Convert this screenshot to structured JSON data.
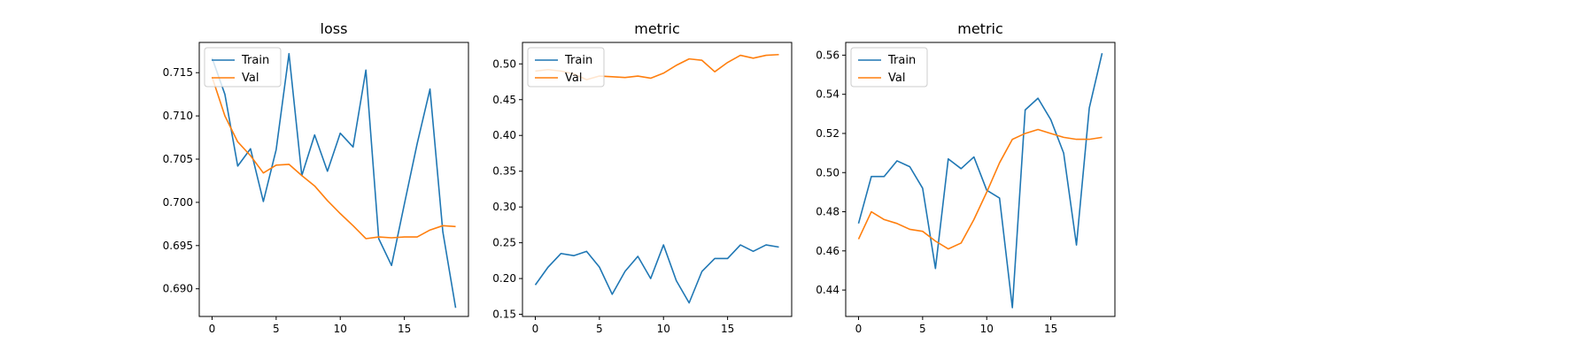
{
  "chart_data": [
    {
      "type": "line",
      "title": "loss",
      "xlabel": "",
      "ylabel": "",
      "xlim": [
        -1,
        20
      ],
      "ylim": [
        0.6868,
        0.7185
      ],
      "xticks": [
        0,
        5,
        10,
        15
      ],
      "yticks": [
        0.69,
        0.695,
        0.7,
        0.705,
        0.71,
        0.715
      ],
      "ytick_labels": [
        "0.690",
        "0.695",
        "0.700",
        "0.705",
        "0.710",
        "0.715"
      ],
      "legend": {
        "position": "upper-left",
        "entries": [
          "Train",
          "Val"
        ]
      },
      "x": [
        0,
        1,
        2,
        3,
        4,
        5,
        6,
        7,
        8,
        9,
        10,
        11,
        12,
        13,
        14,
        15,
        16,
        17,
        18,
        19
      ],
      "series": [
        {
          "name": "Train",
          "color": "#1f77b4",
          "values": [
            0.7167,
            0.7125,
            0.7042,
            0.7062,
            0.7001,
            0.7061,
            0.7172,
            0.7031,
            0.7078,
            0.7036,
            0.708,
            0.7064,
            0.7153,
            0.6958,
            0.6927,
            0.6998,
            0.7068,
            0.7131,
            0.6966,
            0.6878
          ]
        },
        {
          "name": "Val",
          "color": "#ff7f0e",
          "values": [
            0.7145,
            0.71,
            0.707,
            0.7054,
            0.7034,
            0.7043,
            0.7044,
            0.7031,
            0.7019,
            0.7002,
            0.6987,
            0.6973,
            0.6958,
            0.696,
            0.6959,
            0.696,
            0.696,
            0.6968,
            0.6973,
            0.6972
          ]
        }
      ]
    },
    {
      "type": "line",
      "title": "metric",
      "xlabel": "",
      "ylabel": "",
      "xlim": [
        -1,
        20
      ],
      "ylim": [
        0.147,
        0.53
      ],
      "xticks": [
        0,
        5,
        10,
        15
      ],
      "yticks": [
        0.15,
        0.2,
        0.25,
        0.3,
        0.35,
        0.4,
        0.45,
        0.5
      ],
      "ytick_labels": [
        "0.15",
        "0.20",
        "0.25",
        "0.30",
        "0.35",
        "0.40",
        "0.45",
        "0.50"
      ],
      "legend": {
        "position": "upper-left",
        "entries": [
          "Train",
          "Val"
        ]
      },
      "x": [
        0,
        1,
        2,
        3,
        4,
        5,
        6,
        7,
        8,
        9,
        10,
        11,
        12,
        13,
        14,
        15,
        16,
        17,
        18,
        19
      ],
      "series": [
        {
          "name": "Train",
          "color": "#1f77b4",
          "values": [
            0.191,
            0.216,
            0.235,
            0.232,
            0.238,
            0.216,
            0.178,
            0.21,
            0.231,
            0.2,
            0.247,
            0.197,
            0.166,
            0.21,
            0.228,
            0.228,
            0.247,
            0.238,
            0.247,
            0.244
          ]
        },
        {
          "name": "Val",
          "color": "#ff7f0e",
          "values": [
            0.49,
            0.492,
            0.49,
            0.486,
            0.478,
            0.483,
            0.482,
            0.481,
            0.483,
            0.48,
            0.487,
            0.498,
            0.507,
            0.505,
            0.489,
            0.502,
            0.512,
            0.508,
            0.512,
            0.513
          ]
        }
      ]
    },
    {
      "type": "line",
      "title": "metric",
      "xlabel": "",
      "ylabel": "",
      "xlim": [
        -1,
        20
      ],
      "ylim": [
        0.4265,
        0.5665
      ],
      "xticks": [
        0,
        5,
        10,
        15
      ],
      "yticks": [
        0.44,
        0.46,
        0.48,
        0.5,
        0.52,
        0.54,
        0.56
      ],
      "ytick_labels": [
        "0.44",
        "0.46",
        "0.48",
        "0.50",
        "0.52",
        "0.54",
        "0.56"
      ],
      "legend": {
        "position": "upper-left",
        "entries": [
          "Train",
          "Val"
        ]
      },
      "x": [
        0,
        1,
        2,
        3,
        4,
        5,
        6,
        7,
        8,
        9,
        10,
        11,
        12,
        13,
        14,
        15,
        16,
        17,
        18,
        19
      ],
      "series": [
        {
          "name": "Train",
          "color": "#1f77b4",
          "values": [
            0.474,
            0.498,
            0.498,
            0.506,
            0.503,
            0.492,
            0.451,
            0.507,
            0.502,
            0.508,
            0.491,
            0.487,
            0.431,
            0.532,
            0.538,
            0.527,
            0.51,
            0.463,
            0.533,
            0.561
          ]
        },
        {
          "name": "Val",
          "color": "#ff7f0e",
          "values": [
            0.466,
            0.48,
            0.476,
            0.474,
            0.471,
            0.47,
            0.465,
            0.461,
            0.464,
            0.476,
            0.49,
            0.505,
            0.517,
            0.52,
            0.522,
            0.52,
            0.518,
            0.517,
            0.517,
            0.518
          ]
        }
      ]
    }
  ]
}
